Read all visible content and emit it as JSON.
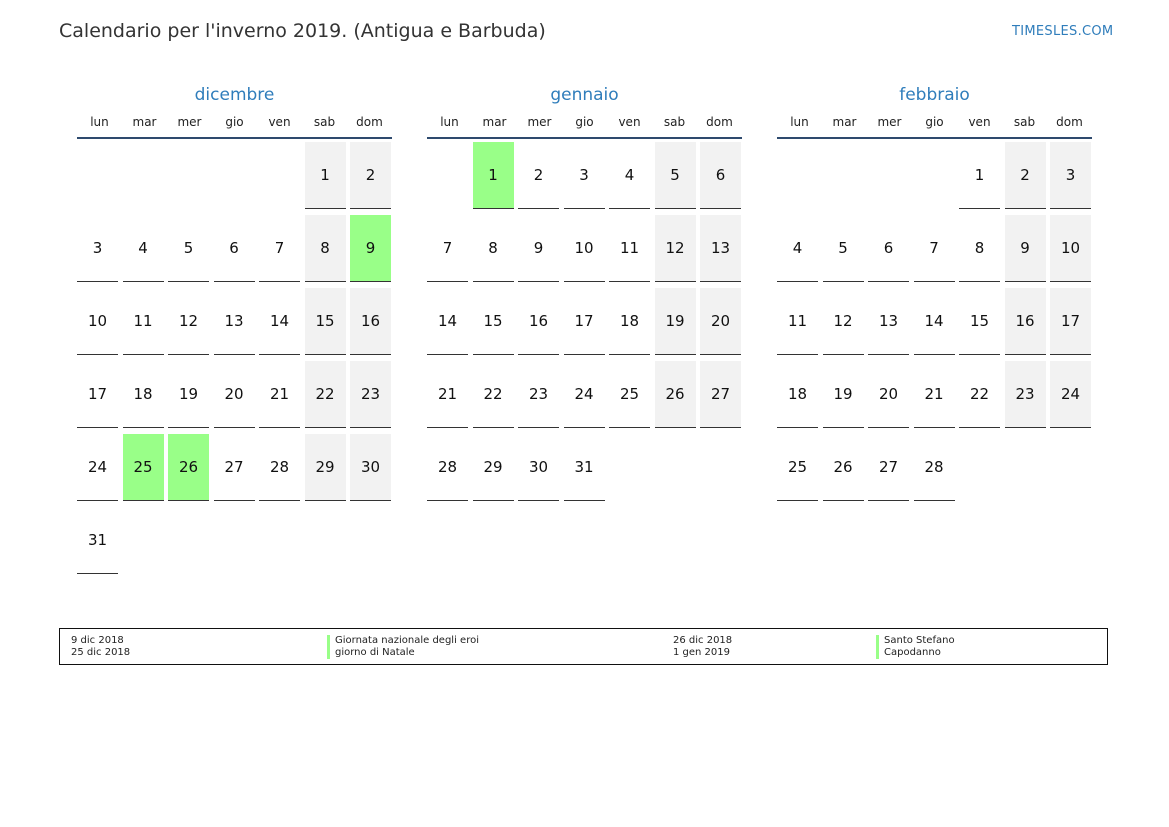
{
  "header": {
    "title": "Calendario per l'inverno 2019. (Antigua e Barbuda)",
    "site": "TIMESLES.COM"
  },
  "weekdays": [
    "lun",
    "mar",
    "mer",
    "gio",
    "ven",
    "sab",
    "dom"
  ],
  "months": [
    {
      "name": "dicembre",
      "offset": 5,
      "days": [
        "1",
        "2",
        "3",
        "4",
        "5",
        "6",
        "7",
        "8",
        "9",
        "10",
        "11",
        "12",
        "13",
        "14",
        "15",
        "16",
        "17",
        "18",
        "19",
        "20",
        "21",
        "22",
        "23",
        "24",
        "25",
        "26",
        "27",
        "28",
        "29",
        "30",
        "31"
      ],
      "holidays": [
        9,
        25,
        26
      ]
    },
    {
      "name": "gennaio",
      "offset": 1,
      "days": [
        "1",
        "2",
        "3",
        "4",
        "5",
        "6",
        "7",
        "8",
        "9",
        "10",
        "11",
        "12",
        "13",
        "14",
        "15",
        "16",
        "17",
        "18",
        "19",
        "20",
        "21",
        "22",
        "23",
        "24",
        "25",
        "26",
        "27",
        "28",
        "29",
        "30",
        "31"
      ],
      "holidays": [
        1
      ]
    },
    {
      "name": "febbraio",
      "offset": 4,
      "days": [
        "1",
        "2",
        "3",
        "4",
        "5",
        "6",
        "7",
        "8",
        "9",
        "10",
        "11",
        "12",
        "13",
        "14",
        "15",
        "16",
        "17",
        "18",
        "19",
        "20",
        "21",
        "22",
        "23",
        "24",
        "25",
        "26",
        "27",
        "28"
      ],
      "holidays": []
    }
  ],
  "legend": [
    {
      "date": "9 dic 2018",
      "name": "Giornata nazionale degli eroi"
    },
    {
      "date": "25 dic 2018",
      "name": "giorno di Natale"
    },
    {
      "date": "26 dic 2018",
      "name": "Santo Stefano"
    },
    {
      "date": "1 gen 2019",
      "name": "Capodanno"
    }
  ],
  "colors": {
    "accent": "#2f7dbb",
    "holiday": "#99ff88",
    "weekend": "#f2f2f2",
    "rule": "#2e4a6e"
  }
}
